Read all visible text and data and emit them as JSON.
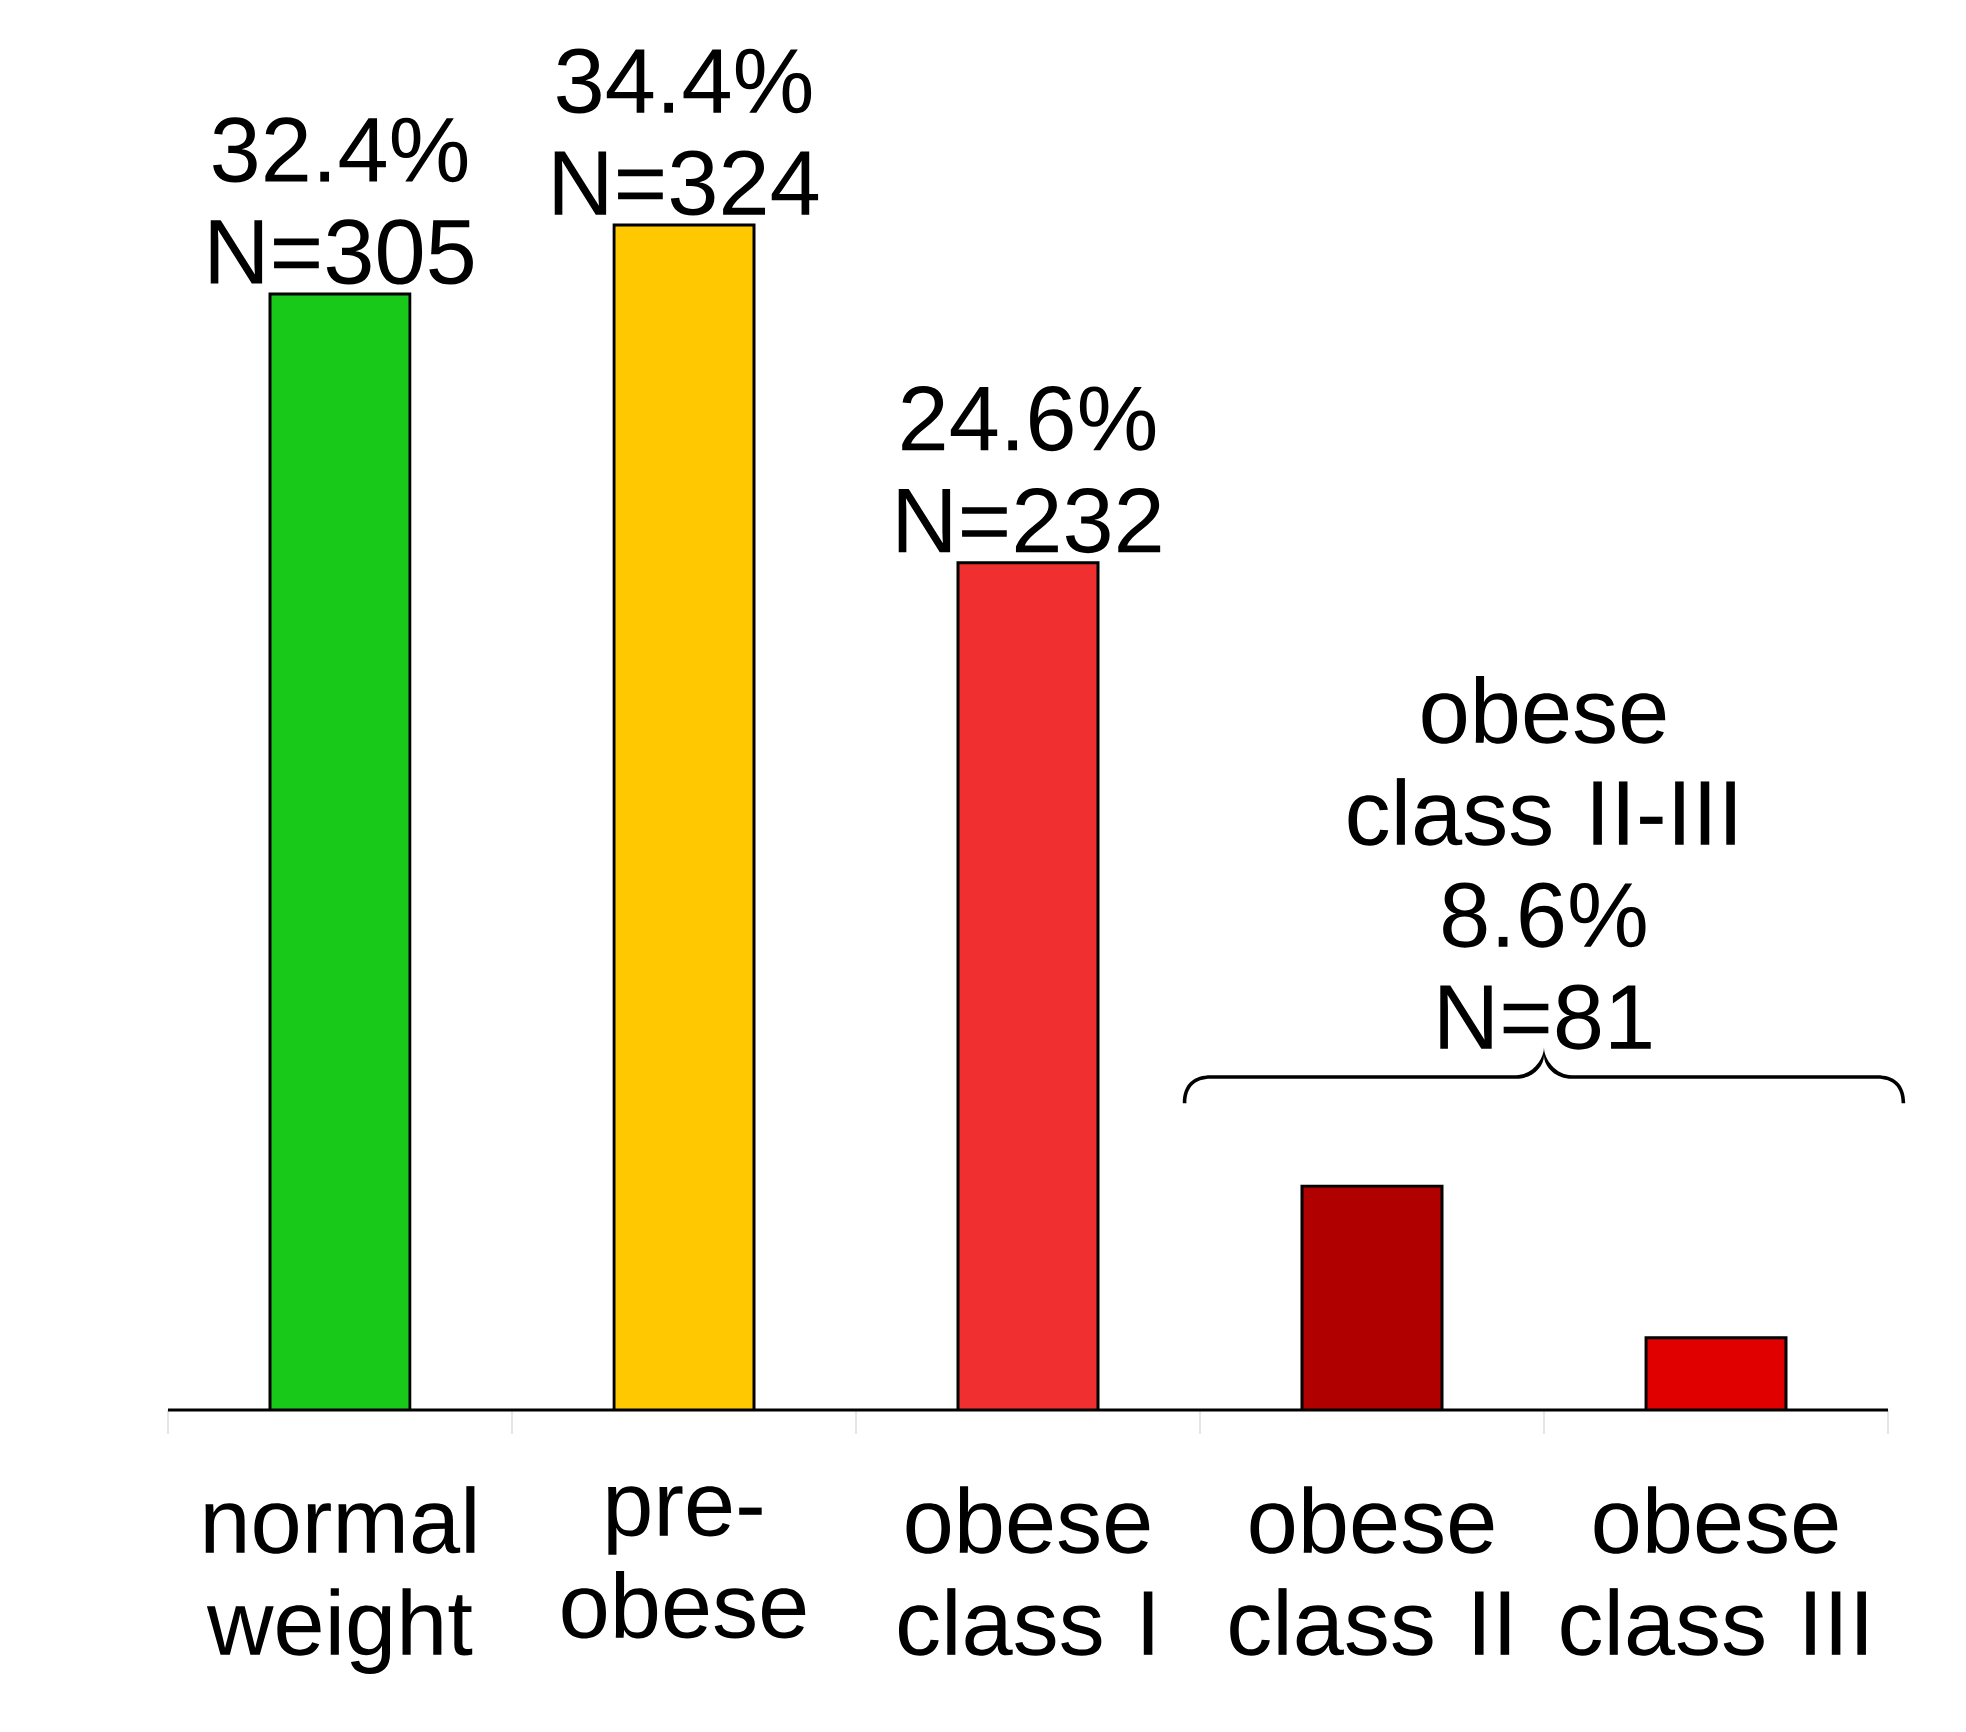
{
  "chart_data": {
    "type": "bar",
    "categories": [
      "normal weight",
      "pre-obese",
      "obese class I",
      "obese class II",
      "obese class III"
    ],
    "values": [
      32.4,
      34.4,
      24.6,
      6.5,
      2.1
    ],
    "colors": [
      "#19c919",
      "#ffc800",
      "#f03030",
      "#b00000",
      "#e00000"
    ],
    "value_labels": [
      "32.4% N=305",
      "34.4% N=324",
      "24.6% N=232",
      null,
      null
    ],
    "annotations": [
      "obese class II-III",
      "8.6%",
      "N=81"
    ]
  }
}
